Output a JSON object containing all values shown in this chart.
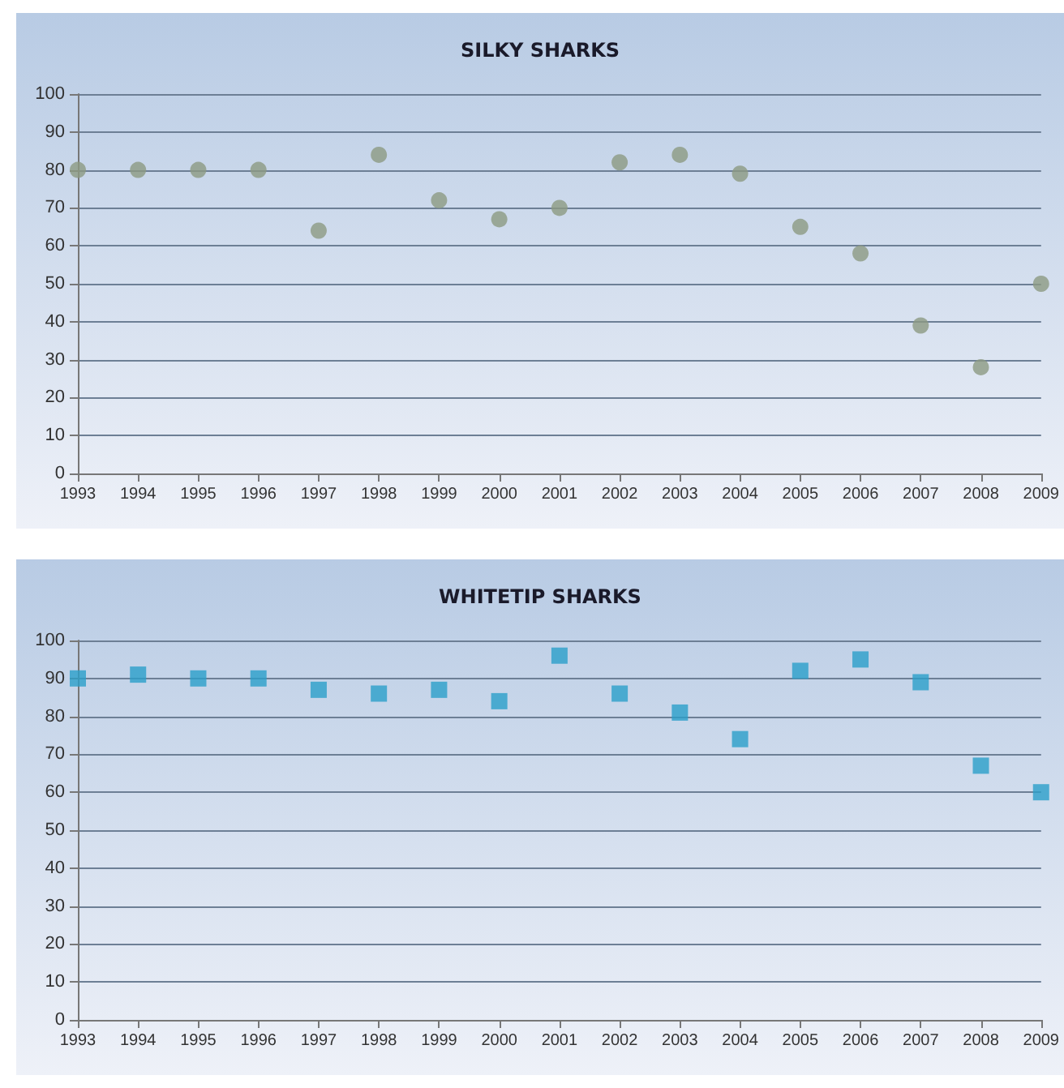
{
  "chart_data": [
    {
      "type": "scatter",
      "title": "SILKY SHARKS",
      "categories": [
        "1993",
        "1994",
        "1995",
        "1996",
        "1997",
        "1998",
        "1999",
        "2000",
        "2001",
        "2002",
        "2003",
        "2004",
        "2005",
        "2006",
        "2007",
        "2008",
        "2009"
      ],
      "series": [
        {
          "color": "#8c9a82",
          "values": [
            80,
            80,
            80,
            80,
            64,
            84,
            72,
            67,
            70,
            82,
            84,
            79,
            65,
            58,
            39,
            28,
            50
          ]
        }
      ],
      "ylim": [
        0,
        100
      ],
      "yticks": [
        0,
        10,
        20,
        30,
        40,
        50,
        60,
        70,
        80,
        90,
        100
      ],
      "grid": "y",
      "marker": "circle"
    },
    {
      "type": "scatter",
      "title": "WHITETIP SHARKS",
      "categories": [
        "1993",
        "1994",
        "1995",
        "1996",
        "1997",
        "1998",
        "1999",
        "2000",
        "2001",
        "2002",
        "2003",
        "2004",
        "2005",
        "2006",
        "2007",
        "2008",
        "2009"
      ],
      "series": [
        {
          "color": "#2a9fc9",
          "values": [
            90,
            91,
            90,
            90,
            87,
            86,
            87,
            84,
            96,
            86,
            81,
            74,
            92,
            95,
            89,
            67,
            60
          ]
        }
      ],
      "ylim": [
        0,
        100
      ],
      "yticks": [
        0,
        10,
        20,
        30,
        40,
        50,
        60,
        70,
        80,
        90,
        100
      ],
      "grid": "y",
      "marker": "square"
    }
  ]
}
